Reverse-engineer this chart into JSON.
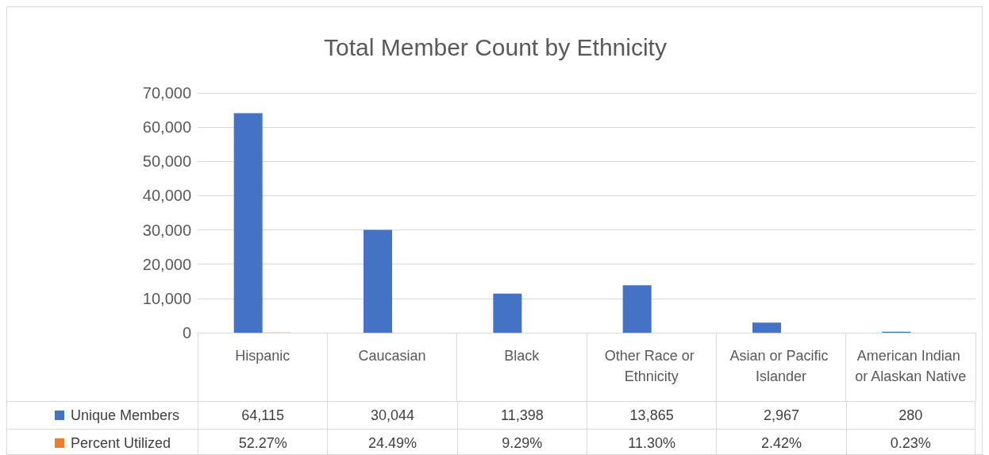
{
  "chart_data": {
    "type": "bar",
    "title": "Total Member Count by Ethnicity",
    "categories": [
      "Hispanic",
      "Caucasian",
      "Black",
      "Other Race or Ethnicity",
      "Asian or Pacific Islander",
      "American Indian or Alaskan Native"
    ],
    "series": [
      {
        "name": "Unique Members",
        "color": "#4472c4",
        "values": [
          64115,
          30044,
          11398,
          13865,
          2967,
          280
        ],
        "value_labels": [
          "64,115",
          "30,044",
          "11,398",
          "13,865",
          "2,967",
          "280"
        ]
      },
      {
        "name": "Percent Utilized",
        "color": "#ed7d31",
        "values": [
          52.27,
          24.49,
          9.29,
          11.3,
          2.42,
          0.23
        ],
        "value_labels": [
          "52.27%",
          "24.49%",
          "9.29%",
          "11.30%",
          "2.42%",
          "0.23%"
        ]
      }
    ],
    "ylim": [
      0,
      70000
    ],
    "yticks": [
      0,
      {
        "value": 10000,
        "label": "10,000"
      },
      {
        "value": 20000,
        "label": "20,000"
      },
      {
        "value": 30000,
        "label": "30,000"
      },
      {
        "value": 40000,
        "label": "40,000"
      },
      {
        "value": 50000,
        "label": "50,000"
      },
      {
        "value": 60000,
        "label": "60,000"
      },
      {
        "value": 70000,
        "label": "70,000"
      }
    ],
    "grid": "y",
    "legend": "bottom left"
  }
}
